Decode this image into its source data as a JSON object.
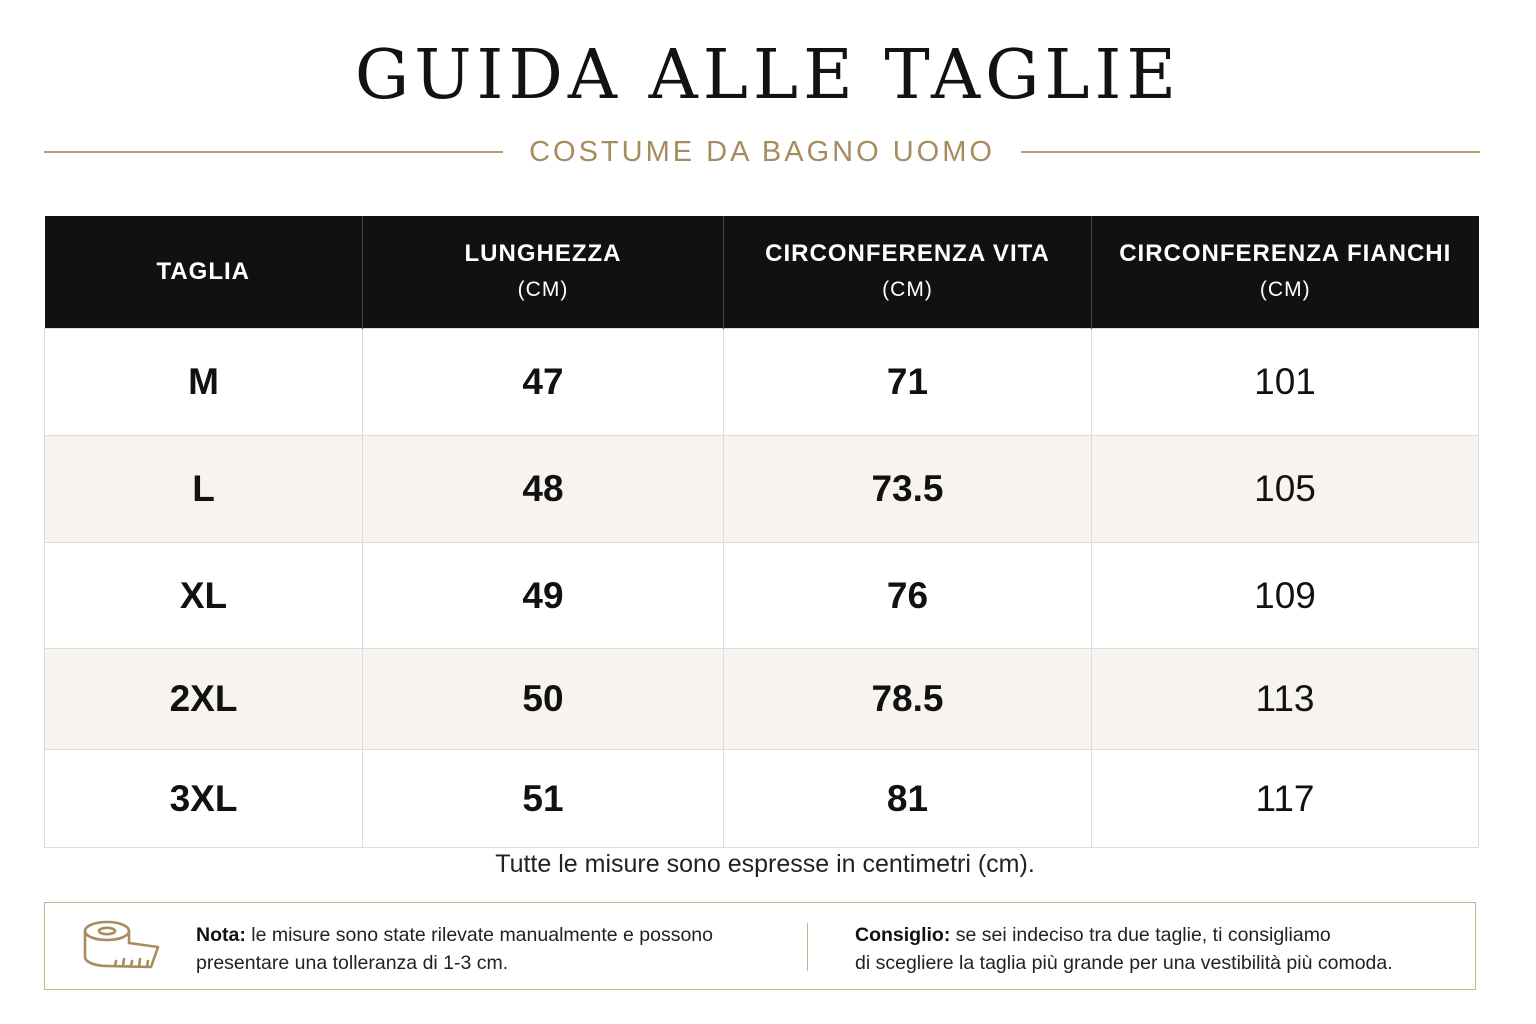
{
  "title": "GUIDA ALLE TAGLIE",
  "subtitle": "COSTUME DA BAGNO UOMO",
  "table": {
    "headers": [
      {
        "label": "TAGLIA",
        "unit": ""
      },
      {
        "label": "LUNGHEZZA",
        "unit": "(CM)"
      },
      {
        "label": "CIRCONFERENZA VITA",
        "unit": "(CM)"
      },
      {
        "label": "CIRCONFERENZA FIANCHI",
        "unit": "(CM)"
      }
    ],
    "rows": [
      [
        "M",
        "47",
        "71",
        "101"
      ],
      [
        "L",
        "48",
        "73.5",
        "105"
      ],
      [
        "XL",
        "49",
        "76",
        "109"
      ],
      [
        "2XL",
        "50",
        "78.5",
        "113"
      ],
      [
        "3XL",
        "51",
        "81",
        "117"
      ]
    ]
  },
  "footnote": "Tutte le misure sono espresse in centimetri (cm).",
  "note": {
    "label": "Nota:",
    "line1": " le misure sono state rilevate manualmente e possono",
    "line2": "presentare una tolleranza di 1-3 cm."
  },
  "tip": {
    "label": "Consiglio:",
    "line1": " se sei indeciso tra due taglie, ti consigliamo",
    "line2": "di scegliere la taglia più grande per una vestibilità più comoda."
  },
  "colors": {
    "accent": "#a88b5f",
    "header_bg": "#111111",
    "stripe": "#f7f4ef"
  },
  "icons": {
    "note": "measuring-tape-icon"
  }
}
